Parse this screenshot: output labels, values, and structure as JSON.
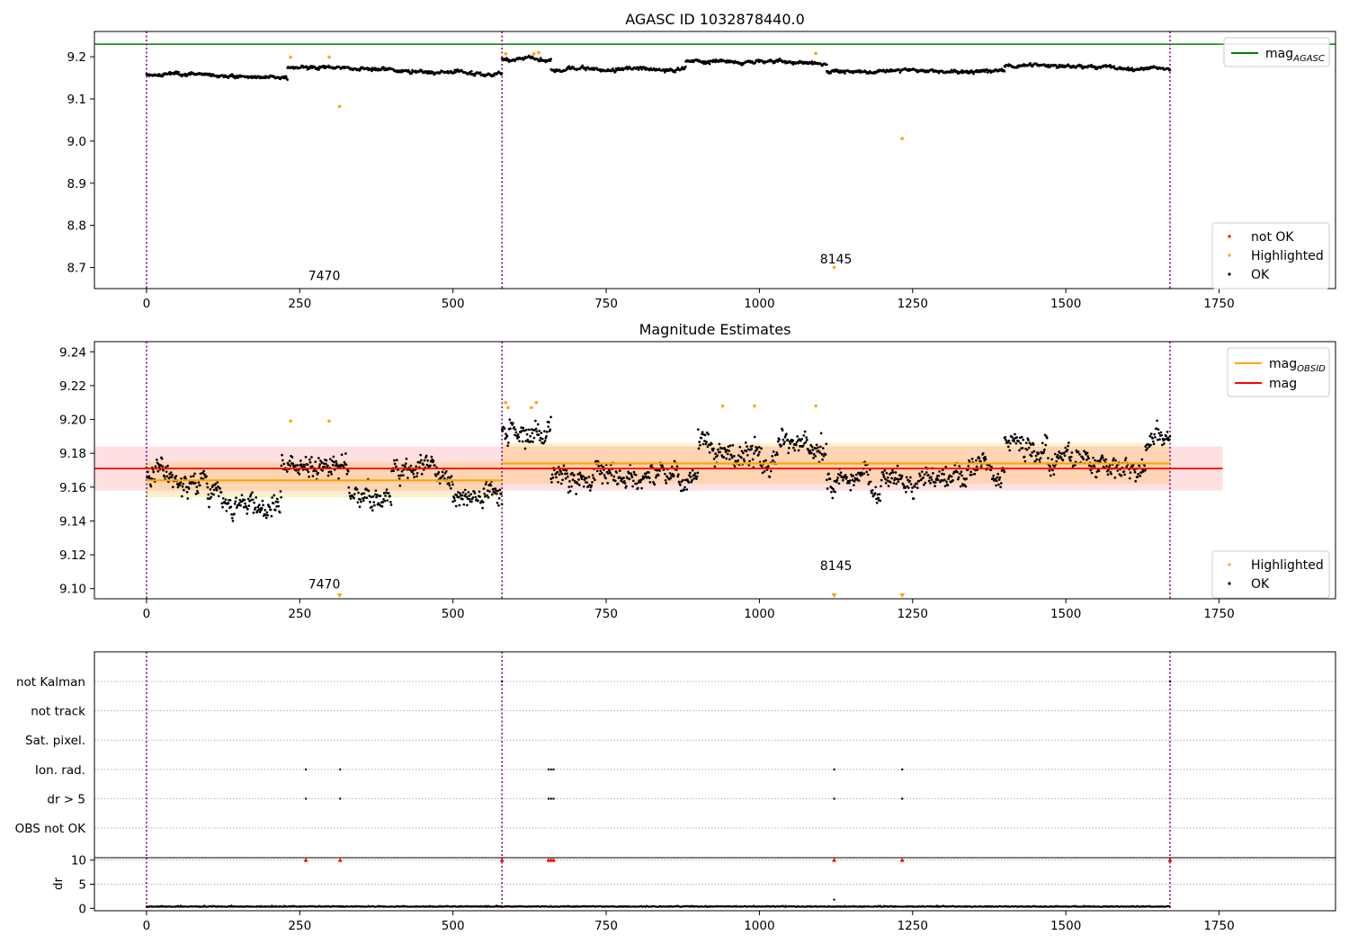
{
  "colors": {
    "ok": "#000000",
    "highlighted": "#ffa500",
    "not_ok": "#ff0000",
    "mag_agasc": "#008000",
    "mag_obsid": "#ffa500",
    "mag": "#ff0000",
    "obsid_boundary": "#800080",
    "grid": "#b0b0b0"
  },
  "obsid_boundaries": [
    0,
    580,
    1670
  ],
  "chart_data": [
    {
      "id": "top",
      "type": "scatter",
      "title": "AGASC ID 1032878440.0",
      "xlim": [
        -85,
        1940
      ],
      "ylim": [
        8.65,
        9.26
      ],
      "x_ticks": [
        0,
        250,
        500,
        750,
        1000,
        1250,
        1500,
        1750
      ],
      "y_ticks": [
        8.7,
        8.8,
        8.9,
        9.0,
        9.1,
        9.2
      ],
      "y_tick_labels": [
        "8.7",
        "8.8",
        "8.9",
        "9.0",
        "9.1",
        "9.2"
      ],
      "x_tick_labels": [
        "0",
        "250",
        "500",
        "750",
        "1000",
        "1250",
        "1500",
        "1750"
      ],
      "mag_agasc": 9.23,
      "annotations": [
        {
          "text": "7470",
          "x": 290,
          "y": 8.67
        },
        {
          "text": "8145",
          "x": 1125,
          "y": 8.71
        }
      ],
      "highlighted_points": [
        {
          "x": 235,
          "y": 9.199
        },
        {
          "x": 298,
          "y": 9.199
        },
        {
          "x": 315,
          "y": 9.082
        },
        {
          "x": 586,
          "y": 9.207
        },
        {
          "x": 632,
          "y": 9.207
        },
        {
          "x": 640,
          "y": 9.21
        },
        {
          "x": 1092,
          "y": 9.208
        },
        {
          "x": 1122,
          "y": 8.7
        },
        {
          "x": 1233,
          "y": 9.006
        }
      ],
      "ok_segments": [
        {
          "x0": 0,
          "x1": 230,
          "y0": 9.16,
          "y1": 9.15
        },
        {
          "x0": 230,
          "x1": 580,
          "y0": 9.175,
          "y1": 9.16
        },
        {
          "x0": 580,
          "x1": 660,
          "y0": 9.195,
          "y1": 9.195
        },
        {
          "x0": 660,
          "x1": 880,
          "y0": 9.17,
          "y1": 9.17
        },
        {
          "x0": 880,
          "x1": 1110,
          "y0": 9.19,
          "y1": 9.185
        },
        {
          "x0": 1110,
          "x1": 1400,
          "y0": 9.165,
          "y1": 9.165
        },
        {
          "x0": 1400,
          "x1": 1670,
          "y0": 9.18,
          "y1": 9.17
        }
      ],
      "legend": {
        "lines": [
          {
            "label": "mag",
            "sub": "AGASC",
            "color_key": "mag_agasc"
          }
        ],
        "points": [
          {
            "label": "not OK",
            "color_key": "not_ok"
          },
          {
            "label": "Highlighted",
            "color_key": "highlighted"
          },
          {
            "label": "OK",
            "color_key": "ok"
          }
        ]
      }
    },
    {
      "id": "middle",
      "type": "scatter",
      "title": "Magnitude Estimates",
      "xlim": [
        -85,
        1940
      ],
      "ylim": [
        9.094,
        9.246
      ],
      "x_ticks": [
        0,
        250,
        500,
        750,
        1000,
        1250,
        1500,
        1750
      ],
      "x_tick_labels": [
        "0",
        "250",
        "500",
        "750",
        "1000",
        "1250",
        "1500",
        "1750"
      ],
      "y_ticks": [
        9.1,
        9.12,
        9.14,
        9.16,
        9.18,
        9.2,
        9.22,
        9.24
      ],
      "y_tick_labels": [
        "9.10",
        "9.12",
        "9.14",
        "9.16",
        "9.18",
        "9.20",
        "9.22",
        "9.24"
      ],
      "mag": {
        "value": 9.171,
        "band": [
          9.158,
          9.184
        ],
        "xrange": [
          -85,
          1756
        ]
      },
      "mag_obsid": [
        {
          "x0": 0,
          "x1": 580,
          "value": 9.164,
          "band": [
            9.154,
            9.175
          ]
        },
        {
          "x0": 580,
          "x1": 1670,
          "value": 9.174,
          "band": [
            9.162,
            9.186
          ]
        }
      ],
      "annotations": [
        {
          "text": "7470",
          "x": 290,
          "y": 9.1
        },
        {
          "text": "8145",
          "x": 1125,
          "y": 9.111
        }
      ],
      "highlighted_points": [
        {
          "x": 235,
          "y": 9.199
        },
        {
          "x": 298,
          "y": 9.199
        },
        {
          "x": 586,
          "y": 9.21
        },
        {
          "x": 590,
          "y": 9.207
        },
        {
          "x": 628,
          "y": 9.207
        },
        {
          "x": 636,
          "y": 9.21
        },
        {
          "x": 940,
          "y": 9.208
        },
        {
          "x": 992,
          "y": 9.208
        },
        {
          "x": 1092,
          "y": 9.208
        }
      ],
      "below_axis_markers": [
        {
          "x": 315
        },
        {
          "x": 1122
        },
        {
          "x": 1233
        }
      ],
      "ok_segments": [
        {
          "x0": 0,
          "x1": 100,
          "y0": 9.17,
          "y1": 9.16
        },
        {
          "x0": 100,
          "x1": 220,
          "y0": 9.152,
          "y1": 9.148
        },
        {
          "x0": 220,
          "x1": 330,
          "y0": 9.172,
          "y1": 9.172
        },
        {
          "x0": 330,
          "x1": 400,
          "y0": 9.16,
          "y1": 9.16
        },
        {
          "x0": 400,
          "x1": 500,
          "y0": 9.17,
          "y1": 9.17
        },
        {
          "x0": 500,
          "x1": 580,
          "y0": 9.158,
          "y1": 9.155
        },
        {
          "x0": 580,
          "x1": 660,
          "y0": 9.192,
          "y1": 9.192
        },
        {
          "x0": 660,
          "x1": 900,
          "y0": 9.168,
          "y1": 9.165
        },
        {
          "x0": 900,
          "x1": 1000,
          "y0": 9.188,
          "y1": 9.185
        },
        {
          "x0": 1000,
          "x1": 1110,
          "y0": 9.178,
          "y1": 9.186
        },
        {
          "x0": 1110,
          "x1": 1400,
          "y0": 9.166,
          "y1": 9.168
        },
        {
          "x0": 1400,
          "x1": 1470,
          "y0": 9.188,
          "y1": 9.18
        },
        {
          "x0": 1470,
          "x1": 1630,
          "y0": 9.172,
          "y1": 9.168
        },
        {
          "x0": 1630,
          "x1": 1670,
          "y0": 9.186,
          "y1": 9.186
        }
      ],
      "legend": {
        "lines": [
          {
            "label": "mag",
            "sub": "OBSID",
            "color_key": "mag_obsid"
          },
          {
            "label": "mag",
            "sub": "",
            "color_key": "mag"
          }
        ],
        "points": [
          {
            "label": "Highlighted",
            "color_key": "highlighted"
          },
          {
            "label": "OK",
            "color_key": "ok"
          }
        ]
      }
    },
    {
      "id": "flags",
      "type": "scatter",
      "xlim": [
        -85,
        1940
      ],
      "categories": [
        "not Kalman",
        "not track",
        "Sat. pixel.",
        "Ion. rad.",
        "dr > 5",
        "OBS not OK"
      ],
      "flag_points": [
        {
          "category": "not Kalman",
          "x": [
            580,
            1670
          ]
        },
        {
          "category": "Ion. rad.",
          "x": [
            260,
            316,
            656,
            660,
            664,
            1122,
            1233
          ]
        },
        {
          "category": "dr > 5",
          "x": [
            260,
            316,
            656,
            660,
            664,
            1122,
            1233
          ]
        }
      ]
    },
    {
      "id": "dr",
      "type": "scatter",
      "ylabel": "dr",
      "xlim": [
        -85,
        1940
      ],
      "ylim": [
        -0.5,
        10.5
      ],
      "x_ticks": [
        0,
        250,
        500,
        750,
        1000,
        1250,
        1500,
        1750
      ],
      "x_tick_labels": [
        "0",
        "250",
        "500",
        "750",
        "1000",
        "1250",
        "1500",
        "1750"
      ],
      "y_ticks": [
        0,
        5,
        10
      ],
      "y_tick_labels": [
        "0",
        "5",
        "10"
      ],
      "baseline": 0.3,
      "extra_points": [
        {
          "x": 1122,
          "y": 1.8
        }
      ],
      "clipped_markers_at_10": [
        260,
        316,
        580,
        656,
        660,
        664,
        1122,
        1233,
        1670
      ]
    }
  ]
}
